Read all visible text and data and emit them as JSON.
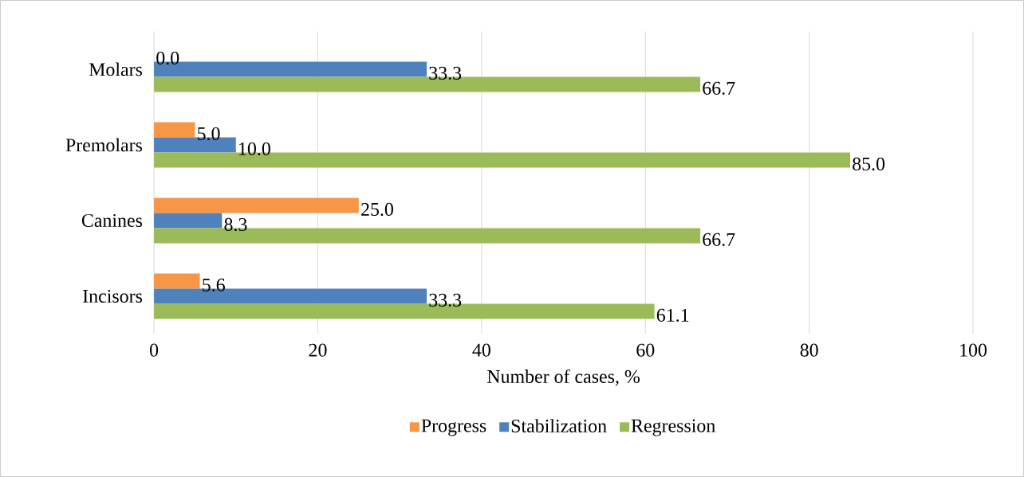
{
  "chart_data": {
    "type": "bar",
    "orientation": "horizontal",
    "categories": [
      "Molars",
      "Premolars",
      "Canines",
      "Incisors"
    ],
    "series": [
      {
        "name": "Progress",
        "color": "#f79646",
        "values": [
          0.0,
          5.0,
          25.0,
          5.6
        ],
        "value_labels": [
          "0.0",
          "5.0",
          "25.0",
          "5.6"
        ]
      },
      {
        "name": "Stabilization",
        "color": "#4f81bd",
        "values": [
          33.3,
          10.0,
          8.3,
          33.3
        ],
        "value_labels": [
          "33.3",
          "10.0",
          "8.3",
          "33.3"
        ]
      },
      {
        "name": "Regression",
        "color": "#9bbb59",
        "values": [
          66.7,
          85.0,
          66.7,
          61.1
        ],
        "value_labels": [
          "66.7",
          "85.0",
          "66.7",
          "61.1"
        ]
      }
    ],
    "xlim": [
      0,
      100
    ],
    "xticks": [
      0,
      20,
      40,
      60,
      80,
      100
    ],
    "xlabel": "Number of cases, %",
    "grid": "x",
    "legend": "bottom"
  }
}
